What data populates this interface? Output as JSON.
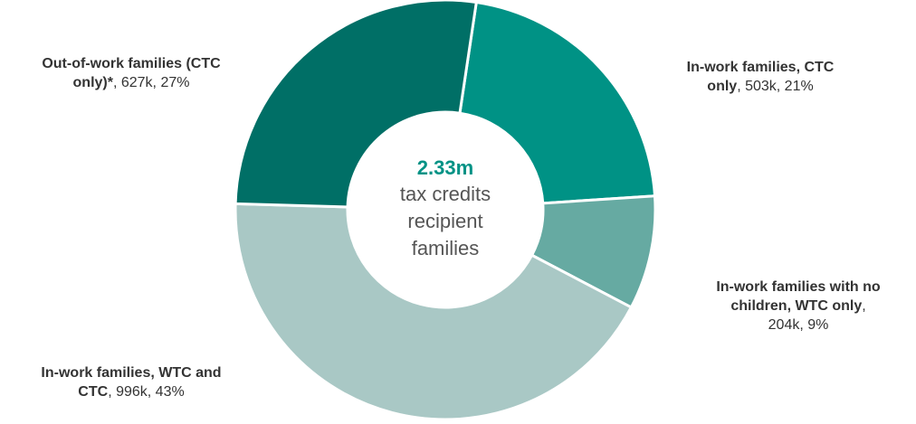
{
  "chart_data": {
    "type": "pie",
    "donut": true,
    "total_value": "2.33m",
    "center_text": [
      "tax credits",
      "recipient",
      "families"
    ],
    "slices": [
      {
        "bold_label": "In-work families, CTC only",
        "value": "503k",
        "percent": "21%",
        "amount": 503,
        "color": "#009285"
      },
      {
        "bold_label": "In-work families with no children, WTC only",
        "value": "204k",
        "percent": "9%",
        "amount": 204,
        "color": "#66aaa2"
      },
      {
        "bold_label": "In-work families, WTC and CTC",
        "value": "996k",
        "percent": "43%",
        "amount": 996,
        "color": "#a9c8c5"
      },
      {
        "bold_label": "Out-of-work families (CTC only)*",
        "value": "627k",
        "percent": "27%",
        "amount": 627,
        "color": "#006f66"
      }
    ]
  },
  "labels": {
    "in_work_ctc": {
      "bold1": "In-work families, CTC",
      "bold2": "only",
      "rest": ", 503k, 21%"
    },
    "no_children": {
      "bold1": "In-work families with no",
      "bold2": "children, WTC only",
      "rest": ",",
      "line3": "204k, 9%"
    },
    "wtc_ctc": {
      "bold1": "In-work families, WTC and",
      "bold2": "CTC",
      "rest": ", 996k, 43%"
    },
    "out_of_work": {
      "bold1": "Out-of-work families (CTC",
      "bold2": "only)*",
      "rest": ", 627k, 27%"
    }
  },
  "colors": {
    "accent": "#009285",
    "label_text": "#333333"
  }
}
